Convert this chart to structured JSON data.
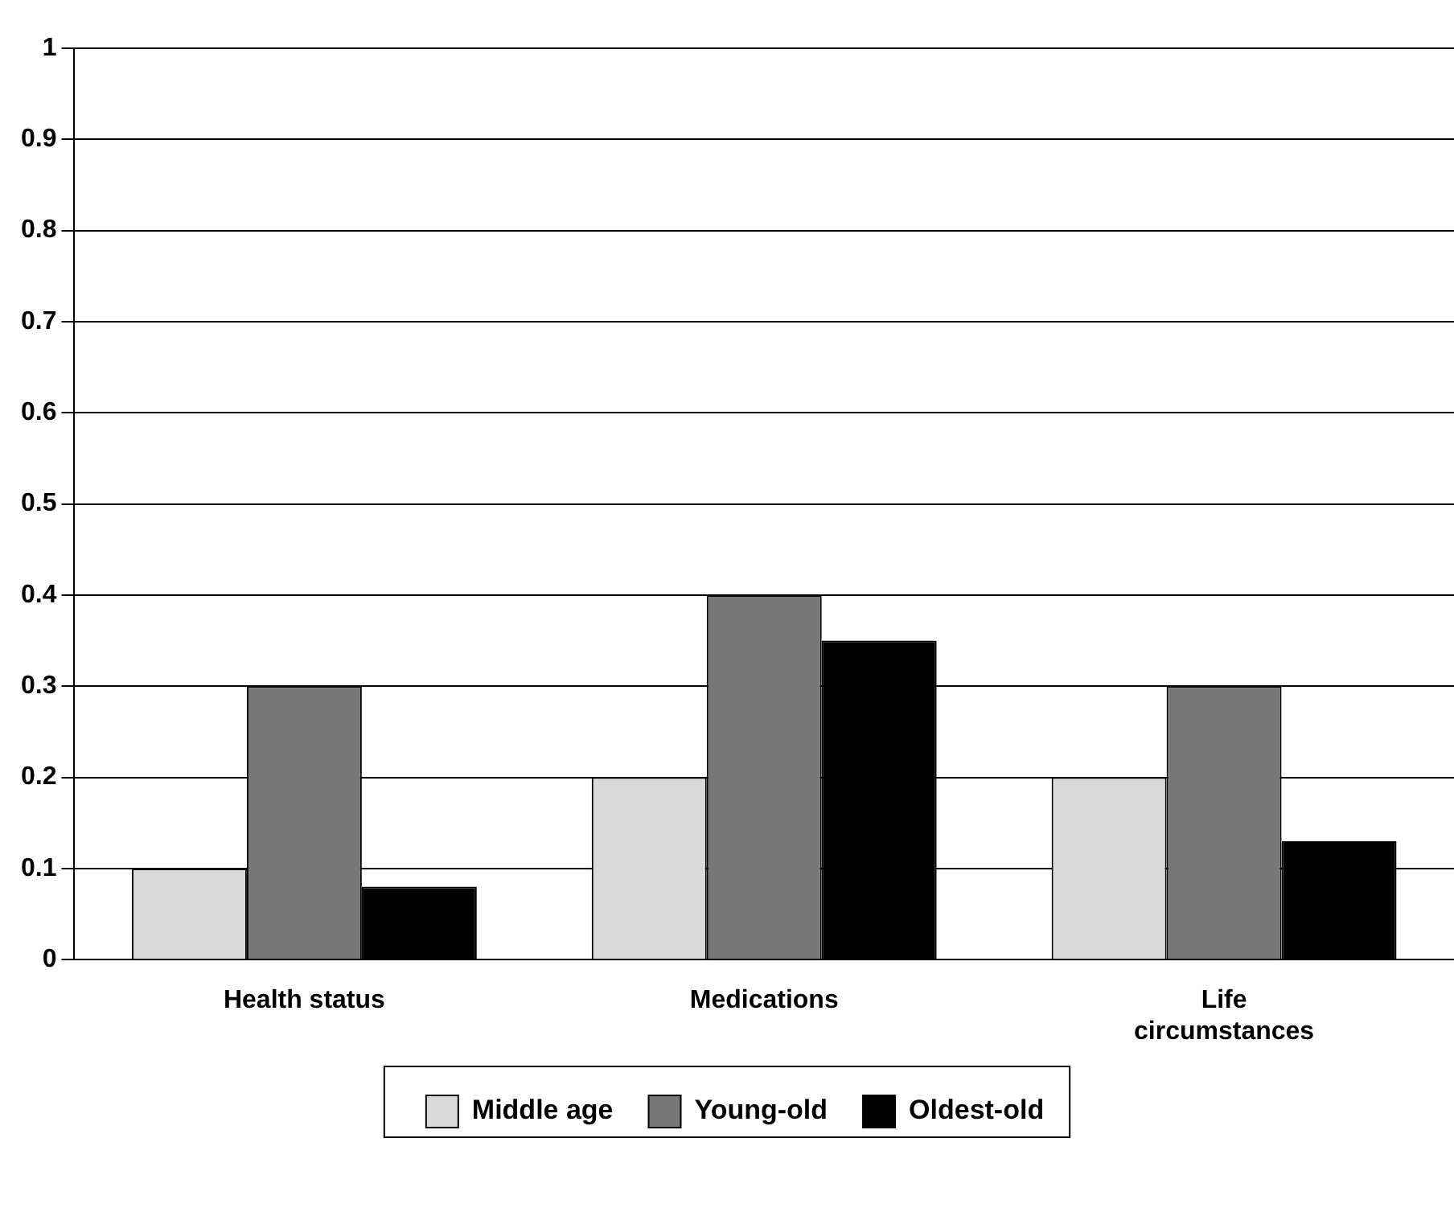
{
  "chart_data": {
    "type": "bar",
    "categories": [
      "Health status",
      "Medications",
      "Life circumstances"
    ],
    "series": [
      {
        "name": "Middle age",
        "color": "#d9d9d9",
        "values": [
          0.1,
          0.2,
          0.2
        ]
      },
      {
        "name": "Young-old",
        "color": "#777777",
        "values": [
          0.3,
          0.4,
          0.3
        ]
      },
      {
        "name": "Oldest-old",
        "color": "#000000",
        "values": [
          0.08,
          0.35,
          0.13
        ]
      }
    ],
    "ylim": [
      0,
      1
    ],
    "yticks": [
      0,
      0.1,
      0.2,
      0.3,
      0.4,
      0.5,
      0.6,
      0.7,
      0.8,
      0.9,
      1
    ],
    "grid": "y",
    "legend": "bottom"
  }
}
